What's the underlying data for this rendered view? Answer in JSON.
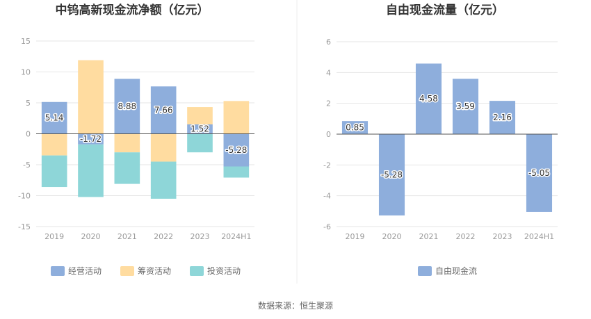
{
  "source_text": "数据来源：恒生聚源",
  "chart_data": [
    {
      "type": "bar",
      "stacked": true,
      "title": "中钨高新现金流净额（亿元）",
      "categories": [
        "2019",
        "2020",
        "2021",
        "2022",
        "2023",
        "2024H1"
      ],
      "ylim": [
        -15,
        15
      ],
      "yticks": [
        15,
        10,
        5,
        0,
        -5,
        -10,
        -15
      ],
      "grid": true,
      "legend_position": "bottom",
      "series": [
        {
          "name": "经营活动",
          "color": "#8eaedc",
          "values": [
            5.14,
            -1.72,
            8.88,
            7.66,
            1.52,
            -5.28
          ],
          "labels": [
            "5.14",
            "-1.72",
            "8.88",
            "7.66",
            "1.52",
            "-5.28"
          ]
        },
        {
          "name": "筹资活动",
          "color": "#ffdca0",
          "values": [
            -3.5,
            11.9,
            -3.0,
            -4.5,
            2.8,
            5.3
          ]
        },
        {
          "name": "投资活动",
          "color": "#8ed6d8",
          "values": [
            -5.1,
            -8.5,
            -5.1,
            -6.0,
            -3.0,
            -1.8
          ]
        }
      ]
    },
    {
      "type": "bar",
      "title": "自由现金流量（亿元）",
      "categories": [
        "2019",
        "2020",
        "2021",
        "2022",
        "2023",
        "2024H1"
      ],
      "ylim": [
        -6,
        6
      ],
      "yticks": [
        6,
        4,
        2,
        0,
        -2,
        -4,
        -6
      ],
      "grid": true,
      "legend_position": "bottom",
      "series": [
        {
          "name": "自由现金流",
          "color": "#8eaedc",
          "values": [
            0.85,
            -5.28,
            4.58,
            3.59,
            2.16,
            -5.05
          ],
          "labels": [
            "0.85",
            "-5.28",
            "4.58",
            "3.59",
            "2.16",
            "-5.05"
          ]
        }
      ]
    }
  ]
}
